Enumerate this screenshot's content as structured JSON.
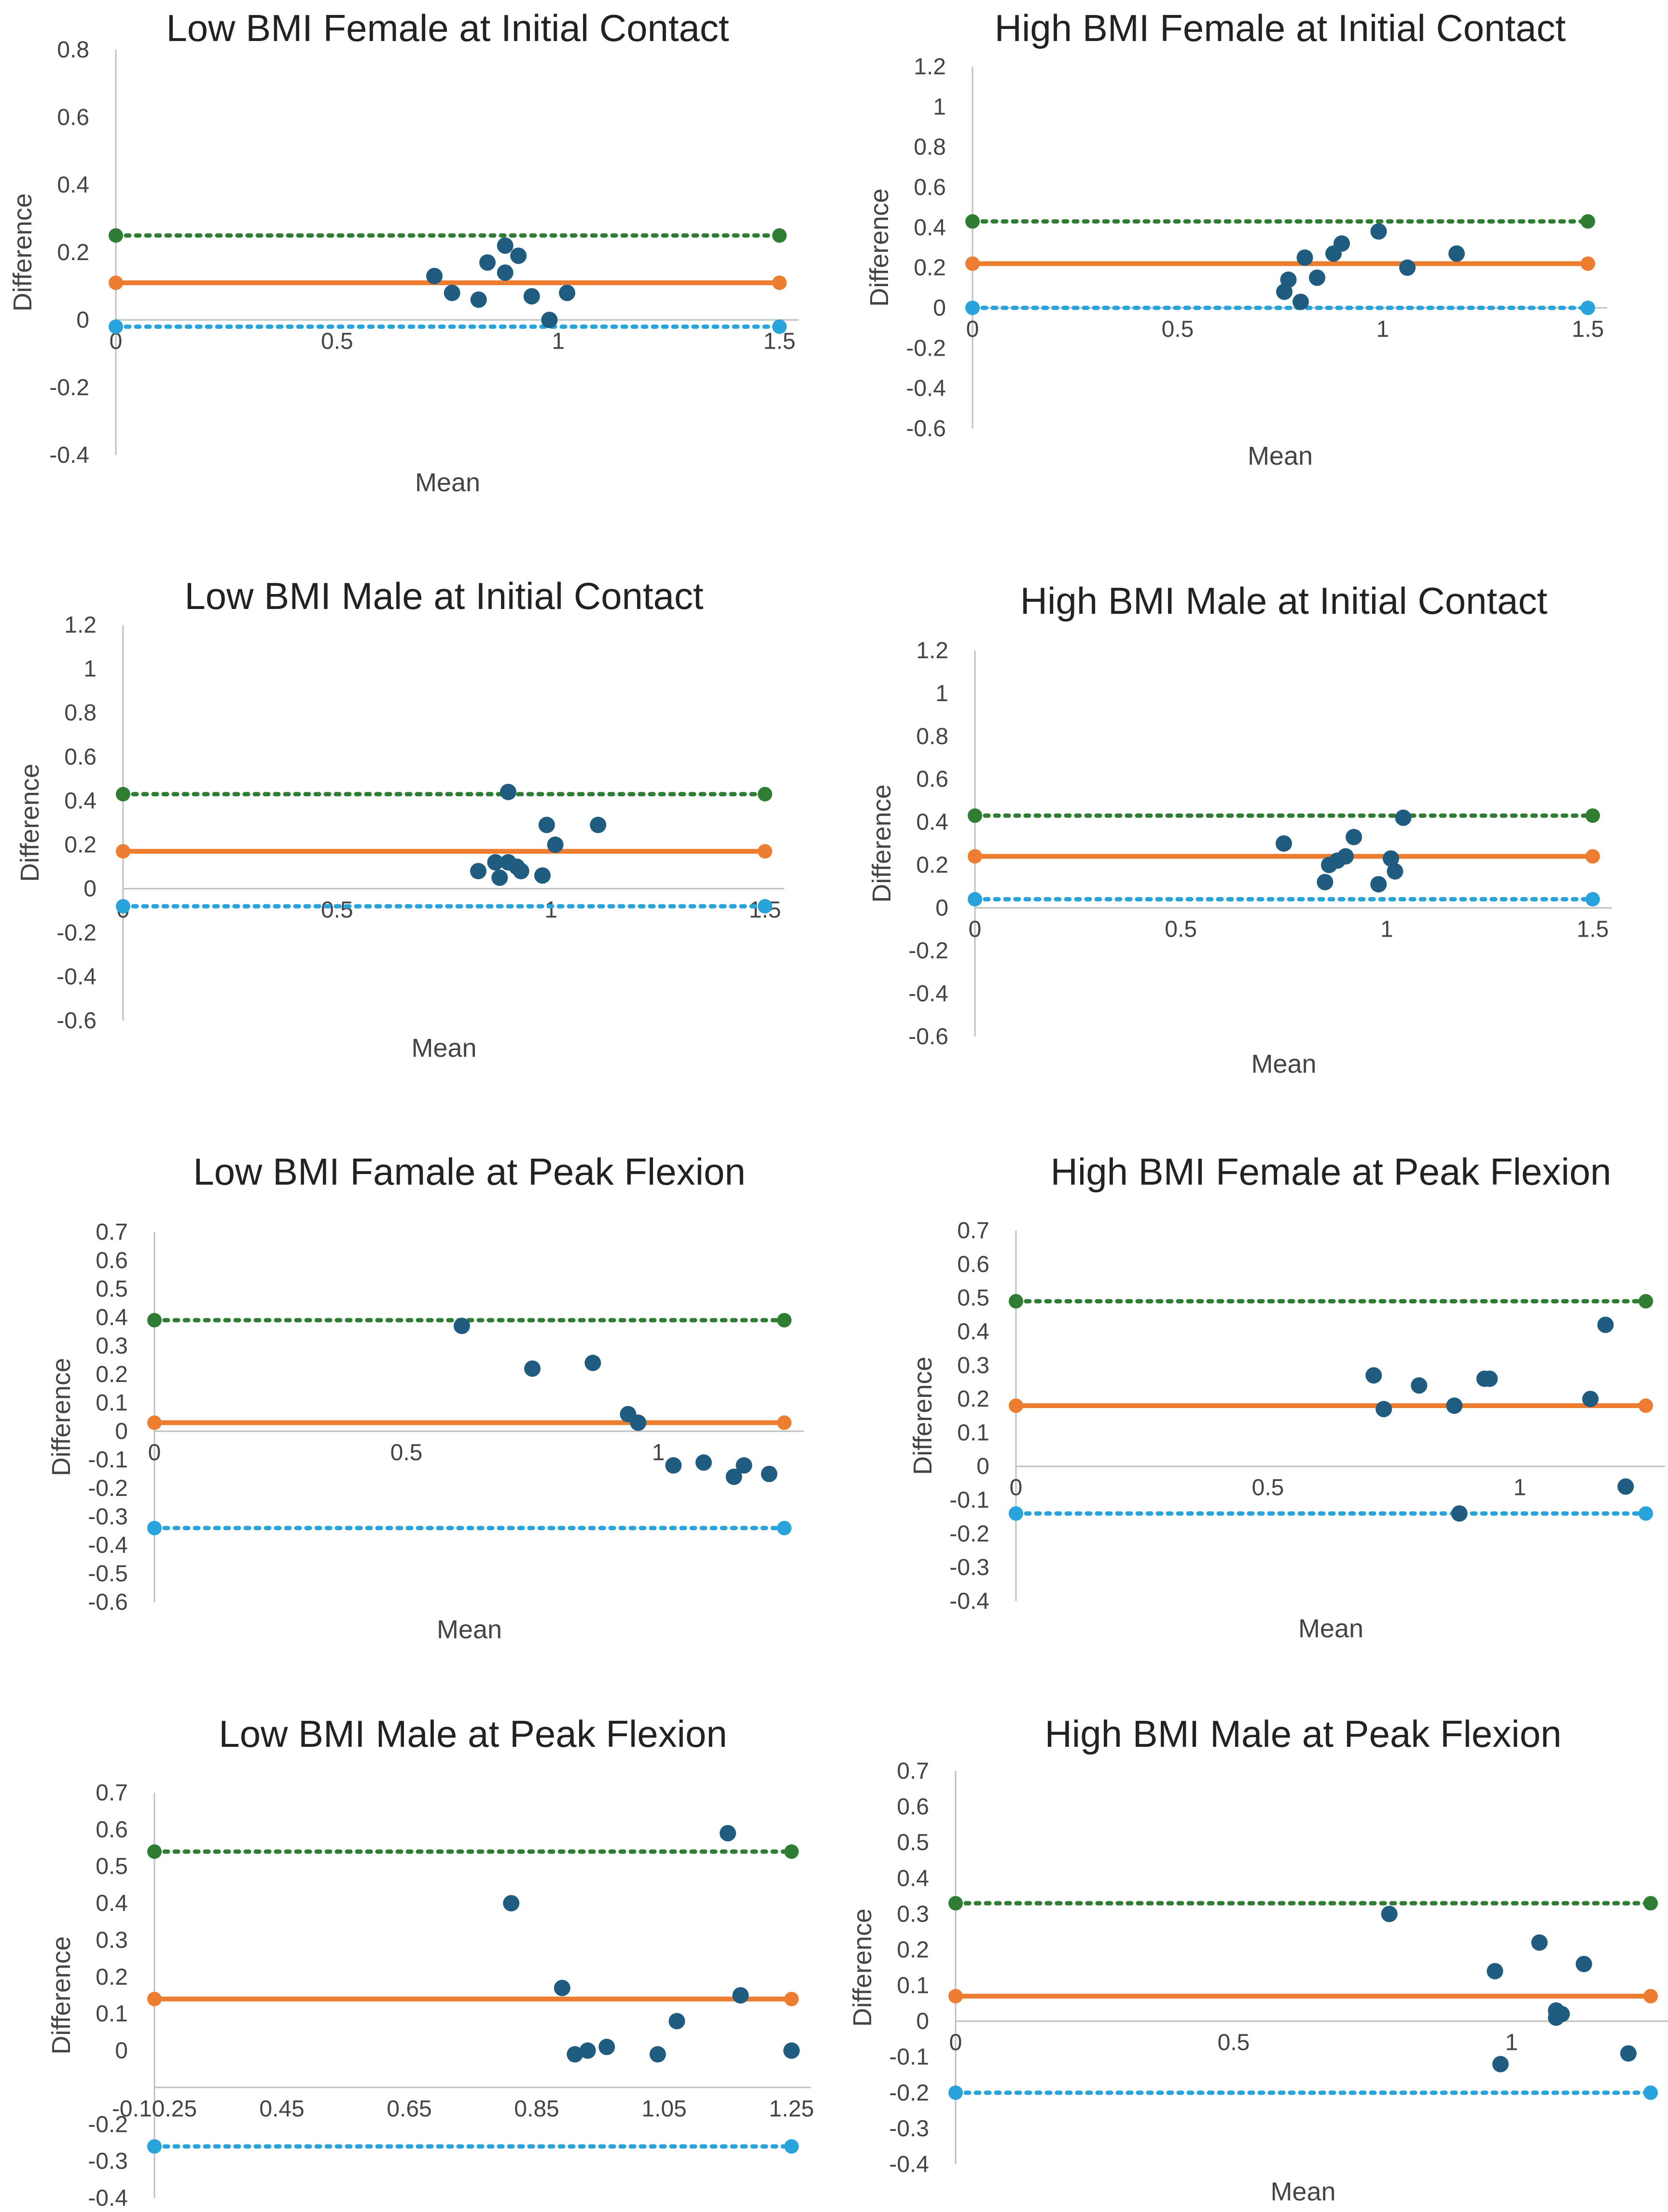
{
  "figure": {
    "description_free": true
  },
  "colors": {
    "upper_loa": "#2E7D32",
    "mean_diff": "#ED7D31",
    "lower_loa": "#29A3DB",
    "points": "#1F5C7F",
    "axis": "#BFBFBF",
    "text": "#444444"
  },
  "chart_data": [
    {
      "type": "scatter",
      "title": "Low BMI Female at Initial Contact",
      "xlabel": "Mean",
      "ylabel": "Difference",
      "xlim": [
        0,
        1.5
      ],
      "ylim": [
        -0.4,
        0.8
      ],
      "xticks": [
        0,
        0.5,
        1,
        1.5
      ],
      "xtick_labels": [
        "0",
        "0.5",
        "1",
        "1.5"
      ],
      "yticks": [
        -0.4,
        -0.2,
        0,
        0.2,
        0.4,
        0.6,
        0.8
      ],
      "ytick_labels": [
        "-0.4",
        "-0.2",
        "0",
        "0.2",
        "0.4",
        "0.6",
        "0.8"
      ],
      "x_axis_at": 0,
      "lines": {
        "upper": 0.25,
        "mean": 0.11,
        "lower": -0.02,
        "x_start": 0,
        "x_end": 1.5
      },
      "points": [
        [
          0.72,
          0.13
        ],
        [
          0.76,
          0.08
        ],
        [
          0.82,
          0.06
        ],
        [
          0.84,
          0.17
        ],
        [
          0.88,
          0.22
        ],
        [
          0.88,
          0.14
        ],
        [
          0.91,
          0.19
        ],
        [
          0.94,
          0.07
        ],
        [
          0.98,
          0.0
        ],
        [
          1.02,
          0.08
        ]
      ]
    },
    {
      "type": "scatter",
      "title": "High BMI Female at Initial Contact",
      "xlabel": "Mean",
      "ylabel": "Difference",
      "xlim": [
        0,
        1.5
      ],
      "ylim": [
        -0.6,
        1.2
      ],
      "xticks": [
        0,
        0.5,
        1,
        1.5
      ],
      "xtick_labels": [
        "0",
        "0.5",
        "1",
        "1.5"
      ],
      "yticks": [
        -0.6,
        -0.4,
        -0.2,
        0,
        0.2,
        0.4,
        0.6,
        0.8,
        1,
        1.2
      ],
      "ytick_labels": [
        "-0.6",
        "-0.4",
        "-0.2",
        "0",
        "0.2",
        "0.4",
        "0.6",
        "0.8",
        "1",
        "1.2"
      ],
      "x_axis_at": 0,
      "lines": {
        "upper": 0.43,
        "mean": 0.22,
        "lower": 0.0,
        "x_start": 0,
        "x_end": 1.5
      },
      "points": [
        [
          0.76,
          0.08
        ],
        [
          0.77,
          0.14
        ],
        [
          0.8,
          0.03
        ],
        [
          0.81,
          0.25
        ],
        [
          0.84,
          0.15
        ],
        [
          0.88,
          0.27
        ],
        [
          0.9,
          0.32
        ],
        [
          0.99,
          0.38
        ],
        [
          1.06,
          0.2
        ],
        [
          1.18,
          0.27
        ]
      ]
    },
    {
      "type": "scatter",
      "title": "Low BMI Male at Initial Contact",
      "xlabel": "Mean",
      "ylabel": "Difference",
      "xlim": [
        0,
        1.5
      ],
      "ylim": [
        -0.6,
        1.2
      ],
      "xticks": [
        0,
        0.5,
        1,
        1.5
      ],
      "xtick_labels": [
        "0",
        "0.5",
        "1",
        "1.5"
      ],
      "yticks": [
        -0.6,
        -0.4,
        -0.2,
        0,
        0.2,
        0.4,
        0.6,
        0.8,
        1,
        1.2
      ],
      "ytick_labels": [
        "-0.6",
        "-0.4",
        "-0.2",
        "0",
        "0.2",
        "0.4",
        "0.6",
        "0.8",
        "1",
        "1.2"
      ],
      "x_axis_at": 0,
      "lines": {
        "upper": 0.43,
        "mean": 0.17,
        "lower": -0.08,
        "x_start": 0,
        "x_end": 1.5
      },
      "points": [
        [
          0.83,
          0.08
        ],
        [
          0.87,
          0.12
        ],
        [
          0.88,
          0.05
        ],
        [
          0.9,
          0.44
        ],
        [
          0.9,
          0.12
        ],
        [
          0.92,
          0.1
        ],
        [
          0.93,
          0.08
        ],
        [
          0.98,
          0.06
        ],
        [
          0.99,
          0.29
        ],
        [
          1.01,
          0.2
        ],
        [
          1.11,
          0.29
        ]
      ]
    },
    {
      "type": "scatter",
      "title": "High BMI Male at Initial Contact",
      "xlabel": "Mean",
      "ylabel": "Difference",
      "xlim": [
        0,
        1.5
      ],
      "ylim": [
        -0.6,
        1.2
      ],
      "xticks": [
        0,
        0.5,
        1,
        1.5
      ],
      "xtick_labels": [
        "0",
        "0.5",
        "1",
        "1.5"
      ],
      "yticks": [
        -0.6,
        -0.4,
        -0.2,
        0,
        0.2,
        0.4,
        0.6,
        0.8,
        1,
        1.2
      ],
      "ytick_labels": [
        "-0.6",
        "-0.4",
        "-0.2",
        "0",
        "0.2",
        "0.4",
        "0.6",
        "0.8",
        "1",
        "1.2"
      ],
      "x_axis_at": 0,
      "lines": {
        "upper": 0.43,
        "mean": 0.24,
        "lower": 0.04,
        "x_start": 0,
        "x_end": 1.5
      },
      "points": [
        [
          0.75,
          0.3
        ],
        [
          0.85,
          0.12
        ],
        [
          0.86,
          0.2
        ],
        [
          0.88,
          0.22
        ],
        [
          0.9,
          0.24
        ],
        [
          0.92,
          0.33
        ],
        [
          0.98,
          0.11
        ],
        [
          1.01,
          0.23
        ],
        [
          1.02,
          0.17
        ],
        [
          1.04,
          0.42
        ]
      ]
    },
    {
      "type": "scatter",
      "title": "Low BMI Famale at Peak Flexion",
      "xlabel": "Mean",
      "ylabel": "Difference",
      "xlim": [
        0,
        1.25
      ],
      "ylim": [
        -0.6,
        0.7
      ],
      "xticks": [
        0,
        0.5,
        1
      ],
      "xtick_labels": [
        "0",
        "0.5",
        "1"
      ],
      "yticks": [
        -0.6,
        -0.5,
        -0.4,
        -0.3,
        -0.2,
        -0.1,
        0,
        0.1,
        0.2,
        0.3,
        0.4,
        0.5,
        0.6,
        0.7
      ],
      "ytick_labels": [
        "-0.6",
        "-0.5",
        "-0.4",
        "-0.3",
        "-0.2",
        "-0.1",
        "0",
        "0.1",
        "0.2",
        "0.3",
        "0.4",
        "0.5",
        "0.6",
        "0.7"
      ],
      "x_axis_at": 0,
      "lines": {
        "upper": 0.39,
        "mean": 0.03,
        "lower": -0.34,
        "x_start": 0,
        "x_end": 1.25
      },
      "points": [
        [
          0.61,
          0.37
        ],
        [
          0.75,
          0.22
        ],
        [
          0.87,
          0.24
        ],
        [
          0.94,
          0.06
        ],
        [
          0.96,
          0.03
        ],
        [
          1.03,
          -0.12
        ],
        [
          1.09,
          -0.11
        ],
        [
          1.15,
          -0.16
        ],
        [
          1.17,
          -0.12
        ],
        [
          1.22,
          -0.15
        ]
      ]
    },
    {
      "type": "scatter",
      "title": "High BMI Female at Peak Flexion",
      "xlabel": "Mean",
      "ylabel": "Difference",
      "xlim": [
        0,
        1.25
      ],
      "ylim": [
        -0.4,
        0.7
      ],
      "xticks": [
        0,
        0.5,
        1
      ],
      "xtick_labels": [
        "0",
        "0.5",
        "1"
      ],
      "yticks": [
        -0.4,
        -0.3,
        -0.2,
        -0.1,
        0,
        0.1,
        0.2,
        0.3,
        0.4,
        0.5,
        0.6,
        0.7
      ],
      "ytick_labels": [
        "-0.4",
        "-0.3",
        "-0.2",
        "-0.1",
        "0",
        "0.1",
        "0.2",
        "0.3",
        "0.4",
        "0.5",
        "0.6",
        "0.7"
      ],
      "x_axis_at": 0,
      "lines": {
        "upper": 0.49,
        "mean": 0.18,
        "lower": -0.14,
        "x_start": 0,
        "x_end": 1.25
      },
      "points": [
        [
          0.71,
          0.27
        ],
        [
          0.73,
          0.17
        ],
        [
          0.8,
          0.24
        ],
        [
          0.87,
          0.18
        ],
        [
          0.93,
          0.26
        ],
        [
          0.94,
          0.26
        ],
        [
          1.14,
          0.2
        ],
        [
          1.17,
          0.42
        ],
        [
          1.21,
          -0.06
        ],
        [
          0.88,
          -0.14
        ]
      ]
    },
    {
      "type": "scatter",
      "title": "Low BMI Male at Peak Flexion",
      "xlabel": "Mean",
      "ylabel": "Difference",
      "xlim": [
        0.25,
        1.25
      ],
      "ylim": [
        -0.4,
        0.7
      ],
      "xticks": [
        0.25,
        0.45,
        0.65,
        0.85,
        1.05,
        1.25
      ],
      "xtick_labels": [
        "-0.10.25",
        "0.45",
        "0.65",
        "0.85",
        "1.05",
        "1.25"
      ],
      "yticks": [
        -0.4,
        -0.3,
        -0.2,
        -0.1,
        0,
        0.1,
        0.2,
        0.3,
        0.4,
        0.5,
        0.6,
        0.7
      ],
      "ytick_labels": [
        "-0.4",
        "-0.3",
        "-0.2",
        "",
        "0",
        "0.1",
        "0.2",
        "0.3",
        "0.4",
        "0.5",
        "0.6",
        "0.7"
      ],
      "x_axis_at": -0.1,
      "lines": {
        "upper": 0.54,
        "mean": 0.14,
        "lower": -0.26,
        "x_start": 0.25,
        "x_end": 1.25
      },
      "points": [
        [
          0.81,
          0.4
        ],
        [
          0.89,
          0.17
        ],
        [
          0.91,
          -0.01
        ],
        [
          0.93,
          0.0
        ],
        [
          0.96,
          0.01
        ],
        [
          1.04,
          -0.01
        ],
        [
          1.07,
          0.08
        ],
        [
          1.15,
          0.59
        ],
        [
          1.17,
          0.15
        ],
        [
          1.25,
          0.0
        ]
      ]
    },
    {
      "type": "scatter",
      "title": "High BMI Male at Peak Flexion",
      "xlabel": "Mean",
      "ylabel": "Difference",
      "xlim": [
        0,
        1.25
      ],
      "ylim": [
        -0.4,
        0.7
      ],
      "xticks": [
        0,
        0.5,
        1
      ],
      "xtick_labels": [
        "0",
        "0.5",
        "1"
      ],
      "yticks": [
        -0.4,
        -0.3,
        -0.2,
        -0.1,
        0,
        0.1,
        0.2,
        0.3,
        0.4,
        0.5,
        0.6,
        0.7
      ],
      "ytick_labels": [
        "-0.4",
        "-0.3",
        "-0.2",
        "-0.1",
        "0",
        "0.1",
        "0.2",
        "0.3",
        "0.4",
        "0.5",
        "0.6",
        "0.7"
      ],
      "x_axis_at": 0,
      "lines": {
        "upper": 0.33,
        "mean": 0.07,
        "lower": -0.2,
        "x_start": 0,
        "x_end": 1.25
      },
      "points": [
        [
          0.78,
          0.3
        ],
        [
          0.97,
          0.14
        ],
        [
          0.98,
          -0.12
        ],
        [
          1.05,
          0.22
        ],
        [
          1.08,
          0.03
        ],
        [
          1.09,
          0.02
        ],
        [
          1.08,
          0.01
        ],
        [
          1.13,
          0.16
        ],
        [
          1.21,
          -0.09
        ]
      ]
    }
  ]
}
